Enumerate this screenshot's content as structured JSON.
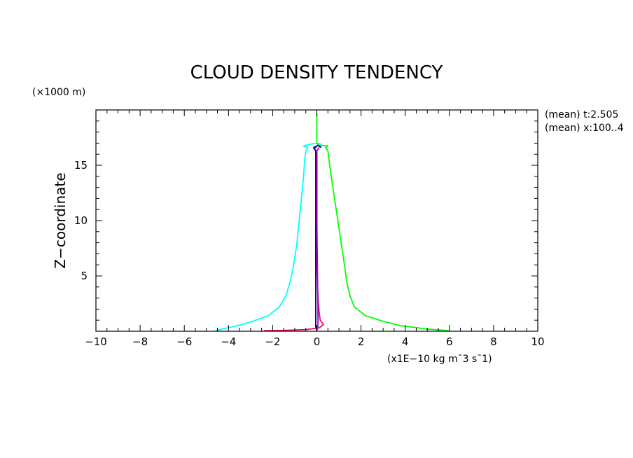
{
  "chart_data": {
    "type": "line",
    "title": "CLOUD DENSITY TENDENCY",
    "ylabel": "Z−coordinate",
    "y_unit": "(×1000 m)",
    "x_unit": "(x1E−10 kg m¯3 s¯1)",
    "annotations": [
      "(mean) t:2.505",
      "(mean) x:100..4"
    ],
    "xlim": [
      -10,
      10
    ],
    "ylim": [
      0,
      20
    ],
    "x_ticks": [
      "−10",
      "−8",
      "−6",
      "−4",
      "−2",
      "0",
      "2",
      "4",
      "6",
      "8",
      "10"
    ],
    "y_ticks": [
      "5",
      "10",
      "15"
    ],
    "x_tick_values": [
      -10,
      -8,
      -6,
      -4,
      -2,
      0,
      2,
      4,
      6,
      8,
      10
    ],
    "y_tick_values": [
      5,
      10,
      15
    ],
    "grid": false,
    "series": [
      {
        "color": "#00ffff",
        "points": [
          [
            -4.6,
            0.05
          ],
          [
            -4.3,
            0.2
          ],
          [
            -3.6,
            0.5
          ],
          [
            -2.9,
            0.9
          ],
          [
            -2.2,
            1.4
          ],
          [
            -1.7,
            2.2
          ],
          [
            -1.4,
            3.2
          ],
          [
            -1.2,
            4.5
          ],
          [
            -1.05,
            6.0
          ],
          [
            -0.9,
            8.0
          ],
          [
            -0.8,
            10.0
          ],
          [
            -0.7,
            12.0
          ],
          [
            -0.6,
            14.0
          ],
          [
            -0.55,
            15.5
          ],
          [
            -0.5,
            16.3
          ],
          [
            -0.4,
            16.6
          ],
          [
            -0.6,
            16.75
          ],
          [
            -0.3,
            16.9
          ],
          [
            0.0,
            17.0
          ],
          [
            0.2,
            16.9
          ],
          [
            0.1,
            16.6
          ]
        ]
      },
      {
        "color": "#00ff00",
        "points": [
          [
            0.0,
            19.7
          ],
          [
            0.0,
            17.0
          ],
          [
            0.1,
            16.8
          ],
          [
            0.5,
            16.75
          ],
          [
            0.4,
            16.6
          ],
          [
            0.5,
            16.3
          ],
          [
            0.55,
            15.5
          ],
          [
            0.65,
            14.0
          ],
          [
            0.8,
            12.0
          ],
          [
            0.95,
            10.0
          ],
          [
            1.1,
            8.0
          ],
          [
            1.25,
            6.0
          ],
          [
            1.35,
            4.5
          ],
          [
            1.5,
            3.2
          ],
          [
            1.7,
            2.2
          ],
          [
            2.2,
            1.4
          ],
          [
            3.0,
            0.9
          ],
          [
            3.8,
            0.5
          ],
          [
            5.0,
            0.2
          ],
          [
            6.0,
            0.05
          ]
        ]
      },
      {
        "color": "#ff0066",
        "points": [
          [
            -2.4,
            0.05
          ],
          [
            -1.5,
            0.08
          ],
          [
            -0.5,
            0.15
          ],
          [
            0.1,
            0.3
          ],
          [
            0.3,
            0.6
          ],
          [
            0.15,
            1.0
          ],
          [
            0.1,
            1.8
          ],
          [
            0.05,
            3.0
          ],
          [
            0.0,
            6.0
          ],
          [
            0.0,
            12.0
          ],
          [
            0.0,
            16.0
          ],
          [
            -0.1,
            16.5
          ],
          [
            0.0,
            16.7
          ]
        ]
      },
      {
        "color": "#0000aa",
        "points": [
          [
            0.0,
            0.05
          ],
          [
            -0.05,
            0.4
          ],
          [
            -0.05,
            2.0
          ],
          [
            -0.05,
            6.0
          ],
          [
            -0.05,
            10.0
          ],
          [
            -0.05,
            14.0
          ],
          [
            -0.05,
            16.3
          ],
          [
            -0.15,
            16.6
          ],
          [
            0.05,
            16.8
          ],
          [
            0.2,
            16.6
          ]
        ]
      },
      {
        "color": "#aa00aa",
        "points": [
          [
            0.0,
            0.05
          ],
          [
            0.05,
            0.5
          ],
          [
            0.05,
            2.0
          ],
          [
            0.0,
            10.0
          ],
          [
            0.0,
            16.3
          ],
          [
            0.1,
            16.6
          ]
        ]
      }
    ]
  }
}
